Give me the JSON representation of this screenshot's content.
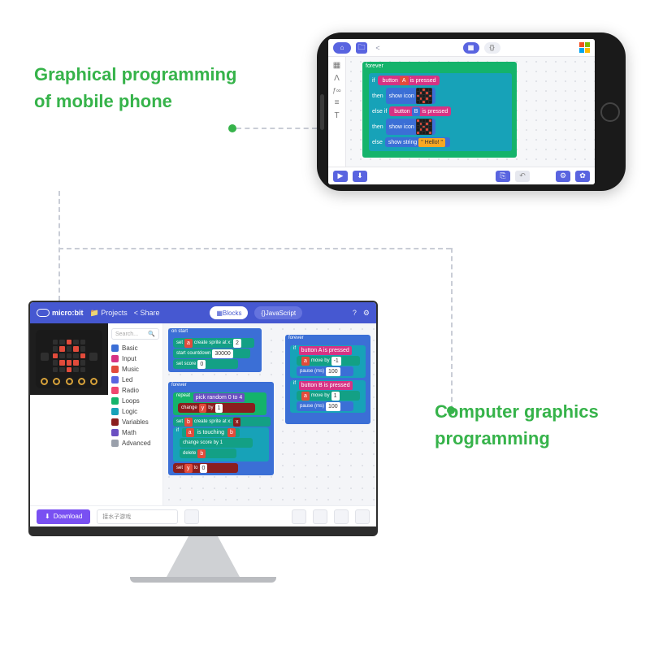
{
  "labels": {
    "mobile_line1": "Graphical programming",
    "mobile_line2": "of mobile phone",
    "computer_line1": "Computer graphics",
    "computer_line2": "programming",
    "text_color": "#36b34a"
  },
  "connector": {
    "dot_color": "#36b34a",
    "dash_color": "#c9cdd6"
  },
  "phone": {
    "accent": "#5964e0",
    "topbar": {
      "home_bg": "#5964e0",
      "folder_bg": "#5964e0",
      "share_color": "#8a8fa6",
      "blocks_btn_bg": "#5964e0",
      "js_btn_bg": "#eceef4",
      "windows_colors": [
        "#f25022",
        "#7fba00",
        "#00a4ef",
        "#ffb900"
      ]
    },
    "palette_icons": [
      "▦",
      "Λ",
      "ƒ∞",
      "≡",
      "T"
    ],
    "blocks": {
      "forever_label": "forever",
      "if_label": "if",
      "then_label": "then",
      "else_if_label": "else if",
      "else_label": "else",
      "button_a": "button A is pressed",
      "button_b": "button B is pressed",
      "show_icon": "show icon",
      "show_string": "show string",
      "hello": "\" Hello! \"",
      "colors": {
        "loop": "#14b36b",
        "logic": "#17a2b8",
        "input": "#d63384",
        "basic": "#3b6fd6",
        "chip_a": "#e24b3b",
        "chip_b": "#3b6fd6",
        "hello_bg": "#f7a823"
      }
    },
    "bottom": {
      "accent": "#5964e0",
      "gray": "#e6e8ef"
    }
  },
  "monitor": {
    "topbar": {
      "bg": "#4658d1",
      "brand": "micro:bit",
      "projects": "Projects",
      "share": "Share",
      "blocks_btn": "Blocks",
      "js_btn": "JavaScript",
      "blocks_bg": "#ffffff",
      "blocks_fg": "#4658d1",
      "js_bg": "#6573de"
    },
    "categories": [
      {
        "name": "Basic",
        "color": "#3b6fd6"
      },
      {
        "name": "Input",
        "color": "#d63384"
      },
      {
        "name": "Music",
        "color": "#e24b3b"
      },
      {
        "name": "Led",
        "color": "#5964e0"
      },
      {
        "name": "Radio",
        "color": "#ef476f"
      },
      {
        "name": "Loops",
        "color": "#14b36b"
      },
      {
        "name": "Logic",
        "color": "#17a2b8"
      },
      {
        "name": "Variables",
        "color": "#8b1e1e"
      },
      {
        "name": "Math",
        "color": "#6a4fc1"
      },
      {
        "name": "Advanced",
        "color": "#9aa0ab"
      }
    ],
    "search_placeholder": "Search...",
    "mb_leds_on": [
      2,
      6,
      8,
      10,
      14,
      16,
      17,
      18,
      22
    ],
    "canvas_colors": {
      "loop": "#14b36b",
      "logic": "#17a2b8",
      "input": "#d63384",
      "basic": "#3b6fd6",
      "variable": "#8b1e1e",
      "math": "#6a4fc1",
      "chip_red": "#e24b3b",
      "chip_orange": "#f7a823",
      "sprite": "#13a085"
    },
    "code_labels": {
      "on_start": "on start",
      "create_sprite": "create sprite at x:",
      "countdown": "start countdown",
      "set_score": "set score",
      "forever": "forever",
      "repeat": "repeat",
      "pick_random": "pick random 0 to 4",
      "change": "change",
      "if": "if",
      "is_touching": "is touching",
      "change_score": "change score by 1",
      "button_a": "button A is pressed",
      "button_b": "button B is pressed",
      "move_by": "move by",
      "pause": "pause (ms)"
    },
    "download_btn": {
      "label": "Download",
      "bg": "#7950f2"
    },
    "project_name_placeholder": "接水子游戏"
  }
}
